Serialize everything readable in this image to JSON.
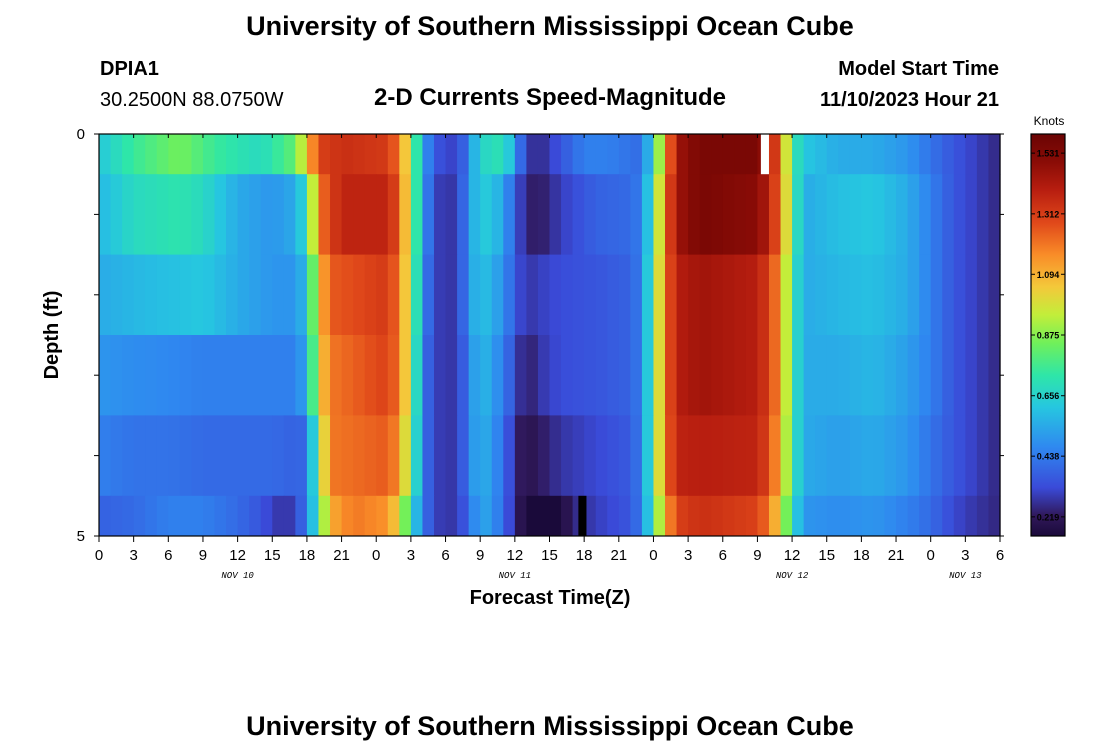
{
  "chart_data": {
    "type": "heatmap",
    "title": "University of Southern Mississippi Ocean Cube",
    "subtitle": "2-D Currents Speed-Magnitude",
    "station": "DPIA1",
    "location": "30.2500N  88.0750W",
    "model_label": "Model Start Time",
    "model_start": "11/10/2023 Hour 21",
    "xlabel": "Forecast Time(Z)",
    "ylabel": "Depth (ft)",
    "x_start_hour": 0,
    "x_end_hour": 78,
    "x_tick_labels": [
      "0",
      "3",
      "6",
      "9",
      "12",
      "15",
      "18",
      "21",
      "0",
      "3",
      "6",
      "9",
      "12",
      "15",
      "18",
      "21",
      "0",
      "3",
      "6",
      "9",
      "12",
      "15",
      "18",
      "21",
      "0",
      "3",
      "6"
    ],
    "date_labels": [
      {
        "text": "NOV 10",
        "hour": 12
      },
      {
        "text": "NOV 11",
        "hour": 36
      },
      {
        "text": "NOV 12",
        "hour": 60
      },
      {
        "text": "NOV 13",
        "hour": 75
      }
    ],
    "y_tick_labels": [
      {
        "text": "0",
        "depth": 0
      },
      {
        "text": "5",
        "depth": 5
      }
    ],
    "ylim": [
      0,
      5
    ],
    "colorbar": {
      "unit": "Knots",
      "min": 0.15,
      "max": 1.6,
      "ticks": [
        "1.531",
        "1.312",
        "1.094",
        "0.875",
        "0.656",
        "0.438",
        "0.219"
      ],
      "tick_values": [
        1.531,
        1.312,
        1.094,
        0.875,
        0.656,
        0.438,
        0.219
      ]
    },
    "depth_rows": [
      0,
      0.5,
      1.5,
      2.5,
      3.5,
      4.5
    ],
    "depth_row_bounds": [
      [
        0,
        0.5
      ],
      [
        0.5,
        1.5
      ],
      [
        1.5,
        2.5
      ],
      [
        2.5,
        3.5
      ],
      [
        3.5,
        4.5
      ],
      [
        4.5,
        5
      ]
    ],
    "speed_profiles": [
      [
        [
          0,
          0.62
        ],
        [
          3,
          0.75
        ],
        [
          7,
          0.85
        ],
        [
          10,
          0.75
        ],
        [
          14,
          0.68
        ],
        [
          17,
          0.82
        ],
        [
          18,
          1.05
        ],
        [
          19,
          1.3
        ],
        [
          21,
          1.35
        ],
        [
          25,
          1.32
        ],
        [
          26,
          1.2
        ],
        [
          27,
          0.9
        ],
        [
          28,
          0.55
        ],
        [
          29,
          0.35
        ],
        [
          31,
          0.3
        ],
        [
          32,
          0.45
        ],
        [
          33,
          0.7
        ],
        [
          34,
          0.65
        ],
        [
          35,
          0.75
        ],
        [
          36,
          0.5
        ],
        [
          37,
          0.3
        ],
        [
          38,
          0.25
        ],
        [
          39,
          0.3
        ],
        [
          40,
          0.35
        ],
        [
          42,
          0.45
        ],
        [
          44,
          0.45
        ],
        [
          46,
          0.42
        ],
        [
          47,
          0.4
        ],
        [
          48,
          0.7
        ],
        [
          49,
          1.1
        ],
        [
          50,
          1.45
        ],
        [
          52,
          1.55
        ],
        [
          57,
          1.55
        ],
        [
          58,
          1.45
        ],
        [
          59,
          1.2
        ],
        [
          60,
          0.75
        ],
        [
          61,
          0.62
        ],
        [
          64,
          0.55
        ],
        [
          67,
          0.55
        ],
        [
          70,
          0.5
        ],
        [
          72,
          0.42
        ],
        [
          74,
          0.35
        ],
        [
          76,
          0.3
        ],
        [
          78,
          0.25
        ]
      ],
      [
        [
          0,
          0.58
        ],
        [
          3,
          0.68
        ],
        [
          7,
          0.72
        ],
        [
          9,
          0.68
        ],
        [
          12,
          0.55
        ],
        [
          15,
          0.5
        ],
        [
          17,
          0.55
        ],
        [
          18,
          0.7
        ],
        [
          19,
          1.2
        ],
        [
          21,
          1.38
        ],
        [
          25,
          1.38
        ],
        [
          26,
          1.25
        ],
        [
          27,
          0.9
        ],
        [
          28,
          0.55
        ],
        [
          29,
          0.3
        ],
        [
          31,
          0.28
        ],
        [
          32,
          0.5
        ],
        [
          33,
          0.65
        ],
        [
          34,
          0.6
        ],
        [
          35,
          0.55
        ],
        [
          36,
          0.35
        ],
        [
          37,
          0.25
        ],
        [
          38,
          0.22
        ],
        [
          40,
          0.3
        ],
        [
          43,
          0.38
        ],
        [
          46,
          0.4
        ],
        [
          47,
          0.45
        ],
        [
          48,
          0.75
        ],
        [
          49,
          1.2
        ],
        [
          50,
          1.45
        ],
        [
          52,
          1.55
        ],
        [
          57,
          1.5
        ],
        [
          58,
          1.4
        ],
        [
          59,
          1.2
        ],
        [
          60,
          0.8
        ],
        [
          61,
          0.55
        ],
        [
          64,
          0.6
        ],
        [
          67,
          0.62
        ],
        [
          70,
          0.55
        ],
        [
          72,
          0.45
        ],
        [
          74,
          0.35
        ],
        [
          76,
          0.3
        ],
        [
          78,
          0.25
        ]
      ],
      [
        [
          0,
          0.55
        ],
        [
          3,
          0.58
        ],
        [
          6,
          0.6
        ],
        [
          9,
          0.62
        ],
        [
          12,
          0.55
        ],
        [
          15,
          0.5
        ],
        [
          17,
          0.5
        ],
        [
          18,
          0.6
        ],
        [
          19,
          1.05
        ],
        [
          20,
          1.25
        ],
        [
          25,
          1.32
        ],
        [
          26,
          1.2
        ],
        [
          27,
          0.9
        ],
        [
          28,
          0.5
        ],
        [
          29,
          0.3
        ],
        [
          31,
          0.28
        ],
        [
          32,
          0.5
        ],
        [
          33,
          0.62
        ],
        [
          34,
          0.55
        ],
        [
          35,
          0.5
        ],
        [
          36,
          0.35
        ],
        [
          37,
          0.28
        ],
        [
          38,
          0.3
        ],
        [
          40,
          0.33
        ],
        [
          43,
          0.35
        ],
        [
          46,
          0.38
        ],
        [
          47,
          0.45
        ],
        [
          48,
          0.8
        ],
        [
          49,
          1.2
        ],
        [
          50,
          1.4
        ],
        [
          52,
          1.45
        ],
        [
          57,
          1.4
        ],
        [
          58,
          1.3
        ],
        [
          59,
          1.15
        ],
        [
          60,
          0.75
        ],
        [
          61,
          0.55
        ],
        [
          64,
          0.58
        ],
        [
          67,
          0.6
        ],
        [
          70,
          0.55
        ],
        [
          72,
          0.45
        ],
        [
          74,
          0.35
        ],
        [
          76,
          0.3
        ],
        [
          78,
          0.25
        ]
      ],
      [
        [
          0,
          0.5
        ],
        [
          3,
          0.48
        ],
        [
          6,
          0.47
        ],
        [
          9,
          0.45
        ],
        [
          12,
          0.45
        ],
        [
          15,
          0.45
        ],
        [
          17,
          0.45
        ],
        [
          18,
          0.55
        ],
        [
          19,
          1.0
        ],
        [
          20,
          1.2
        ],
        [
          25,
          1.3
        ],
        [
          26,
          1.2
        ],
        [
          27,
          0.9
        ],
        [
          28,
          0.45
        ],
        [
          29,
          0.3
        ],
        [
          31,
          0.28
        ],
        [
          32,
          0.45
        ],
        [
          33,
          0.6
        ],
        [
          34,
          0.52
        ],
        [
          35,
          0.45
        ],
        [
          36,
          0.32
        ],
        [
          37,
          0.22
        ],
        [
          38,
          0.28
        ],
        [
          40,
          0.33
        ],
        [
          43,
          0.35
        ],
        [
          46,
          0.38
        ],
        [
          47,
          0.45
        ],
        [
          48,
          0.8
        ],
        [
          49,
          1.2
        ],
        [
          50,
          1.4
        ],
        [
          52,
          1.45
        ],
        [
          57,
          1.4
        ],
        [
          58,
          1.3
        ],
        [
          59,
          1.15
        ],
        [
          60,
          0.75
        ],
        [
          61,
          0.55
        ],
        [
          64,
          0.55
        ],
        [
          67,
          0.58
        ],
        [
          70,
          0.52
        ],
        [
          72,
          0.45
        ],
        [
          74,
          0.35
        ],
        [
          76,
          0.3
        ],
        [
          78,
          0.25
        ]
      ],
      [
        [
          0,
          0.45
        ],
        [
          3,
          0.42
        ],
        [
          6,
          0.42
        ],
        [
          9,
          0.4
        ],
        [
          12,
          0.4
        ],
        [
          15,
          0.4
        ],
        [
          17,
          0.38
        ],
        [
          18,
          0.4
        ],
        [
          19,
          0.85
        ],
        [
          20,
          1.2
        ],
        [
          25,
          1.25
        ],
        [
          26,
          1.15
        ],
        [
          27,
          0.85
        ],
        [
          28,
          0.45
        ],
        [
          29,
          0.3
        ],
        [
          31,
          0.28
        ],
        [
          32,
          0.45
        ],
        [
          33,
          0.58
        ],
        [
          34,
          0.5
        ],
        [
          35,
          0.42
        ],
        [
          36,
          0.25
        ],
        [
          37,
          0.2
        ],
        [
          38,
          0.22
        ],
        [
          40,
          0.28
        ],
        [
          43,
          0.32
        ],
        [
          46,
          0.36
        ],
        [
          47,
          0.45
        ],
        [
          48,
          0.8
        ],
        [
          49,
          1.2
        ],
        [
          50,
          1.38
        ],
        [
          52,
          1.4
        ],
        [
          57,
          1.38
        ],
        [
          58,
          1.28
        ],
        [
          59,
          1.1
        ],
        [
          60,
          0.75
        ],
        [
          61,
          0.55
        ],
        [
          64,
          0.52
        ],
        [
          67,
          0.55
        ],
        [
          70,
          0.5
        ],
        [
          72,
          0.42
        ],
        [
          74,
          0.35
        ],
        [
          76,
          0.3
        ],
        [
          78,
          0.25
        ]
      ],
      [
        [
          0,
          0.38
        ],
        [
          3,
          0.4
        ],
        [
          6,
          0.45
        ],
        [
          9,
          0.45
        ],
        [
          12,
          0.4
        ],
        [
          14,
          0.35
        ],
        [
          15,
          0.3
        ],
        [
          16,
          0.28
        ],
        [
          17,
          0.3
        ],
        [
          18,
          0.45
        ],
        [
          19,
          0.75
        ],
        [
          20,
          1.1
        ],
        [
          22,
          1.2
        ],
        [
          25,
          1.15
        ],
        [
          26,
          1.0
        ],
        [
          27,
          0.7
        ],
        [
          28,
          0.45
        ],
        [
          29,
          0.3
        ],
        [
          31,
          0.28
        ],
        [
          32,
          0.4
        ],
        [
          33,
          0.55
        ],
        [
          34,
          0.5
        ],
        [
          35,
          0.4
        ],
        [
          36,
          0.25
        ],
        [
          37,
          0.15
        ],
        [
          38,
          0.1
        ],
        [
          39,
          0.08
        ],
        [
          40,
          0.15
        ],
        [
          41,
          0.25
        ],
        [
          43,
          0.3
        ],
        [
          46,
          0.35
        ],
        [
          47,
          0.45
        ],
        [
          48,
          0.75
        ],
        [
          49,
          1.1
        ],
        [
          50,
          1.3
        ],
        [
          52,
          1.35
        ],
        [
          57,
          1.3
        ],
        [
          58,
          1.2
        ],
        [
          59,
          1.0
        ],
        [
          60,
          0.7
        ],
        [
          61,
          0.5
        ],
        [
          64,
          0.48
        ],
        [
          67,
          0.5
        ],
        [
          70,
          0.45
        ],
        [
          72,
          0.4
        ],
        [
          74,
          0.32
        ],
        [
          76,
          0.28
        ],
        [
          78,
          0.25
        ]
      ]
    ],
    "missing_cells": [
      {
        "hour_start": 57.3,
        "hour_end": 58.0,
        "depth_start": 0,
        "depth_end": 0.5,
        "color": "#ffffff"
      },
      {
        "hour_start": 41.5,
        "hour_end": 42.2,
        "depth_start": 4.5,
        "depth_end": 5,
        "color": "#000000"
      }
    ]
  }
}
